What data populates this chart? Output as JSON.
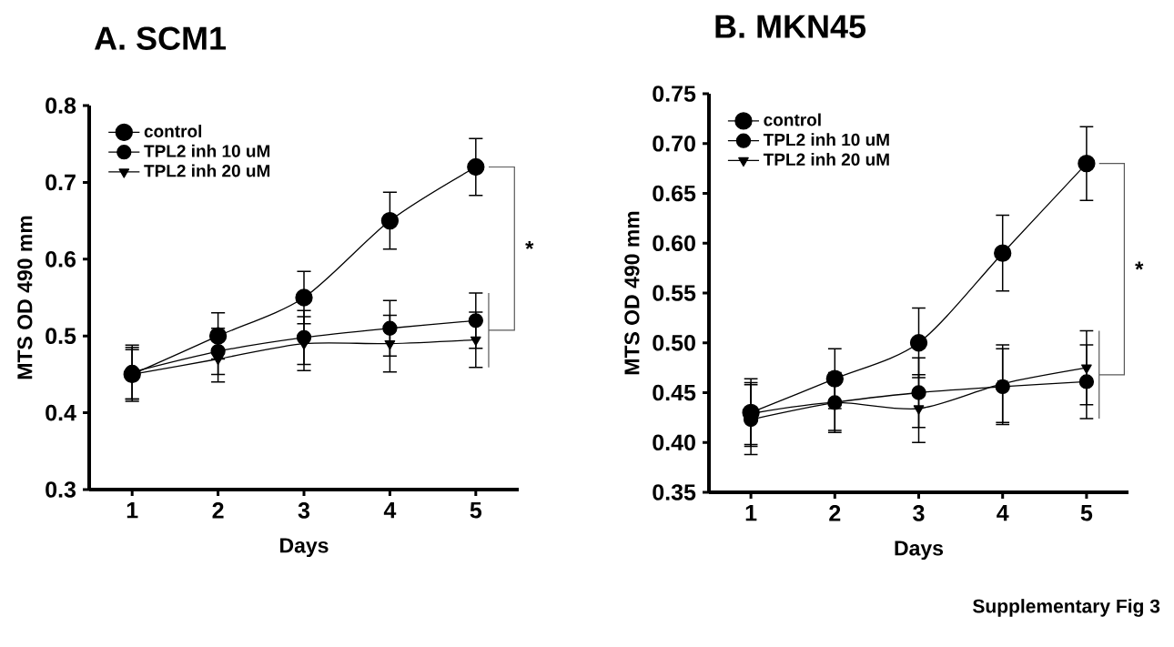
{
  "chart_data": [
    {
      "type": "line",
      "title": "A. SCM1",
      "xlabel": "Days",
      "ylabel": "MTS OD 490 mm",
      "x": [
        1,
        2,
        3,
        4,
        5
      ],
      "xlim": [
        0.5,
        5.5
      ],
      "xticks": [
        1,
        2,
        3,
        4,
        5
      ],
      "ylim": [
        0.3,
        0.8
      ],
      "yticks": [
        0.3,
        0.4,
        0.5,
        0.6,
        0.7,
        0.8
      ],
      "legend": "top left",
      "line_style": "solid",
      "series": [
        {
          "name": "control",
          "color": "#000000",
          "marker": "circle",
          "values": [
            0.45,
            0.5,
            0.55,
            0.65,
            0.72
          ],
          "errors": [
            0.035,
            0.03,
            0.034,
            0.037,
            0.037
          ]
        },
        {
          "name": "TPL2 inh 10 uM",
          "color": "#000000",
          "marker": "circle",
          "values": [
            0.453,
            0.48,
            0.498,
            0.51,
            0.52
          ],
          "errors": [
            0.035,
            0.03,
            0.035,
            0.036,
            0.036
          ]
        },
        {
          "name": "TPL2 inh 20 uM",
          "color": "#000000",
          "marker": "triangle",
          "values": [
            0.45,
            0.47,
            0.49,
            0.49,
            0.495
          ],
          "errors": [
            0.032,
            0.03,
            0.035,
            0.037,
            0.036
          ]
        }
      ],
      "annotations": [
        "*"
      ]
    },
    {
      "type": "line",
      "title": "B. MKN45",
      "xlabel": "Days",
      "ylabel": "MTS OD 490 mm",
      "x": [
        1,
        2,
        3,
        4,
        5
      ],
      "xlim": [
        0.5,
        5.5
      ],
      "xticks": [
        1,
        2,
        3,
        4,
        5
      ],
      "ylim": [
        0.35,
        0.75
      ],
      "yticks": [
        0.35,
        {
          "value": 0.4,
          "label": "0.40"
        },
        0.45,
        {
          "value": 0.5,
          "label": "0.50"
        },
        0.55,
        {
          "value": 0.6,
          "label": "0.60"
        },
        0.65,
        {
          "value": 0.7,
          "label": "0.70"
        },
        0.75
      ],
      "legend": "top left",
      "line_style": "solid",
      "series": [
        {
          "name": "control",
          "color": "#000000",
          "marker": "circle",
          "values": [
            0.43,
            0.464,
            0.5,
            0.59,
            0.68
          ],
          "errors": [
            0.034,
            0.03,
            0.035,
            0.038,
            0.037
          ]
        },
        {
          "name": "TPL2 inh 10 uM",
          "color": "#000000",
          "marker": "circle",
          "values": [
            0.423,
            0.44,
            0.45,
            0.456,
            0.461
          ],
          "errors": [
            0.035,
            0.03,
            0.035,
            0.038,
            0.037
          ]
        },
        {
          "name": "TPL2 inh 20 uM",
          "color": "#000000",
          "marker": "triangle",
          "values": [
            0.429,
            0.44,
            0.434,
            0.459,
            0.475
          ],
          "errors": [
            0.031,
            0.028,
            0.034,
            0.039,
            0.037
          ]
        }
      ],
      "annotations": [
        "*",
        "Supplementary Fig 3"
      ]
    }
  ]
}
